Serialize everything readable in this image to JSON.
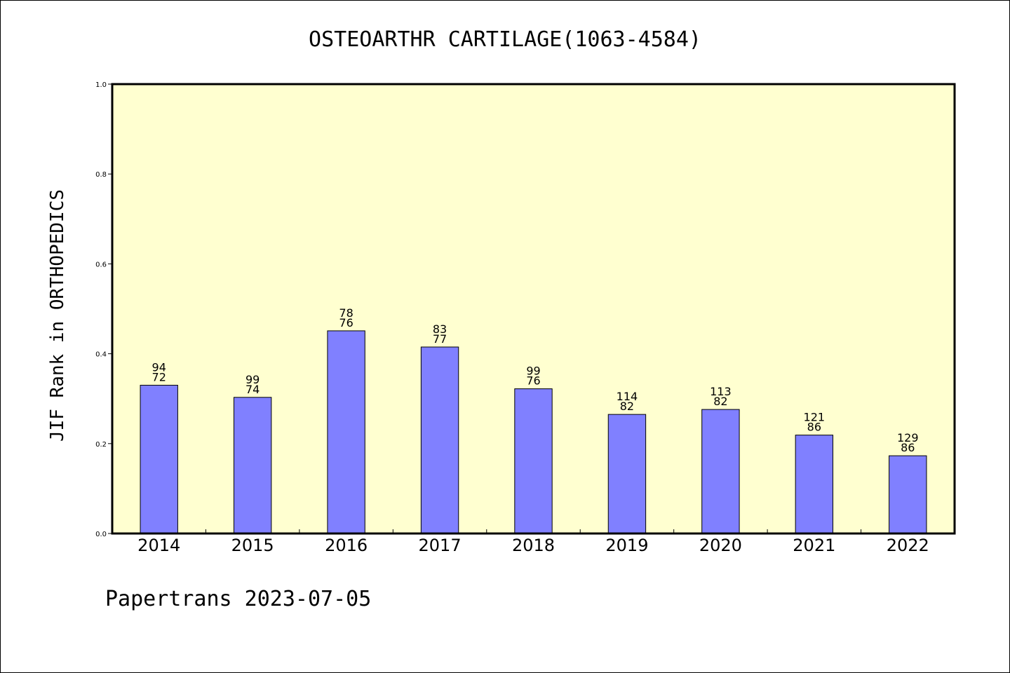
{
  "chart_data": {
    "type": "bar",
    "title": "OSTEOARTHR CARTILAGE(1063-4584)",
    "xlabel": "",
    "ylabel": "JIF Rank in ORTHOPEDICS",
    "ylim": [
      0,
      1.0
    ],
    "yticks": [
      "0.0",
      "0.2",
      "0.4",
      "0.6",
      "0.8",
      "1.0"
    ],
    "categories": [
      "2014",
      "2015",
      "2016",
      "2017",
      "2018",
      "2019",
      "2020",
      "2021",
      "2022"
    ],
    "values": [
      0.33,
      0.303,
      0.451,
      0.415,
      0.322,
      0.265,
      0.276,
      0.219,
      0.173
    ],
    "label_top": [
      "94",
      "99",
      "78",
      "83",
      "99",
      "114",
      "113",
      "121",
      "129"
    ],
    "label_bottom": [
      "72",
      "74",
      "76",
      "77",
      "76",
      "82",
      "82",
      "86",
      "86"
    ],
    "grid": false,
    "colors": {
      "plot_background": "#FFFFD0",
      "bar_fill": "#8080FF",
      "bar_stroke": "#000000"
    }
  },
  "footer": "Papertrans 2023-07-05"
}
